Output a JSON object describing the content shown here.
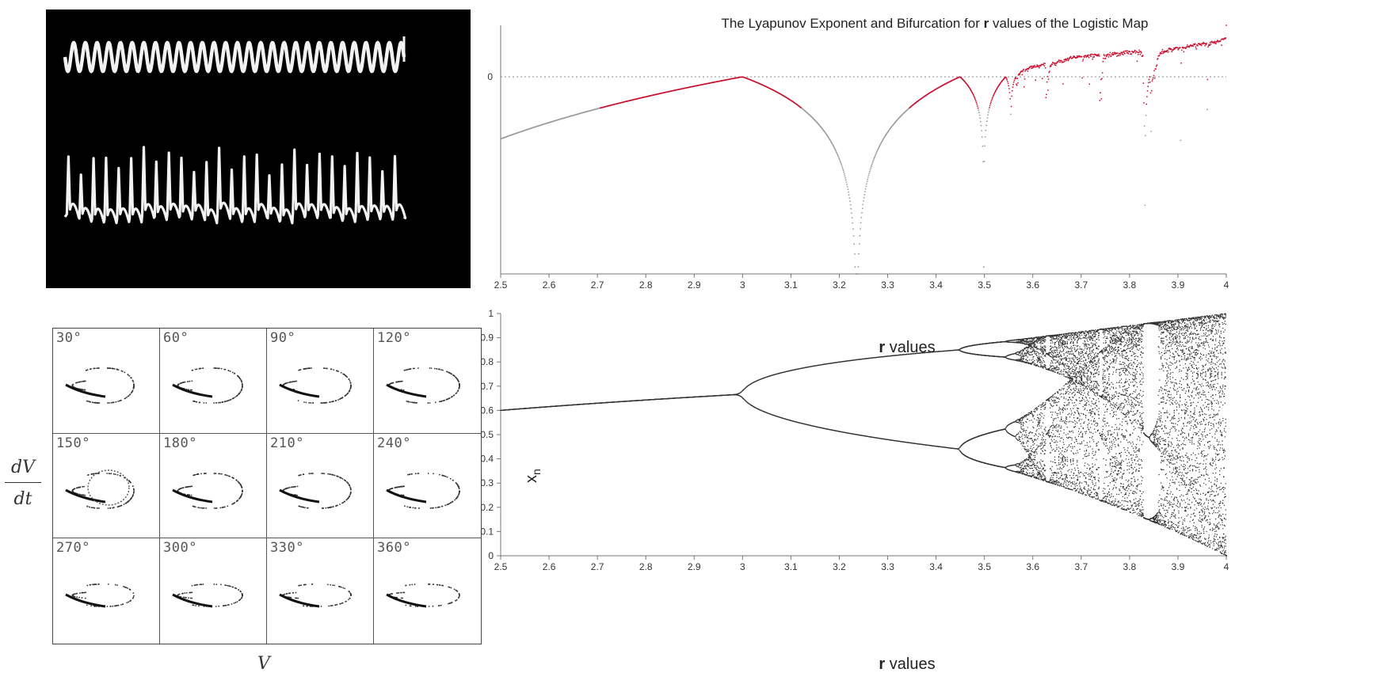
{
  "scope_panel": {
    "background": "#000000",
    "trace_color": "#f2f2f2",
    "upper_trace_cycles": 29,
    "lower_trace_spikes": 27
  },
  "phase_grid": {
    "phases": [
      "30°",
      "60°",
      "90°",
      "120°",
      "150°",
      "180°",
      "210°",
      "240°",
      "270°",
      "300°",
      "330°",
      "360°"
    ],
    "y_axis_numerator": "dV",
    "y_axis_denominator": "dt",
    "x_axis_label": "V"
  },
  "chart_data": [
    {
      "type": "scatter",
      "title_prefix": "The Lyapunov Exponent and Bifurcation for ",
      "title_bold": "r",
      "title_suffix": " values of the Logistic Map",
      "xlabel_bold": "r",
      "xlabel_rest": " values",
      "ylabel": "",
      "xlim": [
        2.5,
        4.0
      ],
      "x_ticks": [
        "2.5",
        "2.6",
        "2.7",
        "2.8",
        "2.9",
        "3",
        "3.1",
        "3.2",
        "3.3",
        "3.4",
        "3.5",
        "3.6",
        "3.7",
        "3.8",
        "3.9",
        "4"
      ],
      "y_ticks": [
        "0"
      ],
      "reference_line": 0,
      "series_color": "#c8102e",
      "negative_color": "#9a9a9a",
      "key_points": [
        {
          "r": 2.5,
          "lambda": -0.693
        },
        {
          "r": 3.0,
          "lambda": 0.0
        },
        {
          "r": 3.236,
          "lambda": -2.0
        },
        {
          "r": 3.449,
          "lambda": 0.0
        },
        {
          "r": 3.5,
          "lambda": -0.9
        },
        {
          "r": 4.0,
          "lambda": 0.693
        }
      ]
    },
    {
      "type": "scatter",
      "title": "",
      "xlabel_bold": "r",
      "xlabel_rest": " values",
      "ylabel_main": "x",
      "ylabel_sub": "n",
      "xlim": [
        2.5,
        4.0
      ],
      "ylim": [
        0,
        1
      ],
      "x_ticks": [
        "2.5",
        "2.6",
        "2.7",
        "2.8",
        "2.9",
        "3",
        "3.1",
        "3.2",
        "3.3",
        "3.4",
        "3.5",
        "3.6",
        "3.7",
        "3.8",
        "3.9",
        "4"
      ],
      "y_ticks": [
        "0",
        "0.1",
        "0.2",
        "0.3",
        "0.4",
        "0.5",
        "0.6",
        "0.7",
        "0.8",
        "0.9",
        "1"
      ],
      "point_color": "#333333",
      "key_points": [
        {
          "r": 2.5,
          "x": 0.6
        },
        {
          "r": 3.0,
          "x": 0.667
        },
        {
          "r": 3.449,
          "x": 0.85
        },
        {
          "r": 3.449,
          "x": 0.44
        },
        {
          "r": 4.0,
          "x": 1.0
        },
        {
          "r": 4.0,
          "x": 0.0
        }
      ]
    }
  ]
}
